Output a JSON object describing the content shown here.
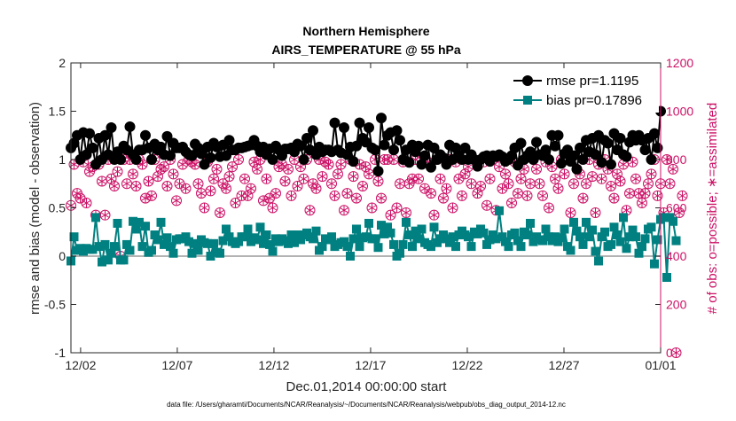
{
  "chart_data": {
    "type": "line",
    "title": "Northern Hemisphere",
    "subtitle": "AIRS_TEMPERATURE @ 55 hPa",
    "xlabel": "Dec.01,2014 00:00:00 start",
    "ylabel": "rmse and bias (model - observation)",
    "ylabel_right": "# of obs: o=possible; ∗=assimilated",
    "footnote": "data file: /Users/gharamti/Documents/NCAR/Reanalysis/~/Documents/NCAR/Reanalysis/webpub/obs_diag_output_2014-12.nc",
    "x_tick_labels": [
      "12/02",
      "12/07",
      "12/12",
      "12/17",
      "12/22",
      "12/27",
      "01/01"
    ],
    "x_tick_days": [
      1,
      6,
      11,
      16,
      21,
      26,
      31
    ],
    "xlim_days": [
      0.5,
      31
    ],
    "ylim": [
      -1,
      2
    ],
    "yticks": [
      "-1",
      "-0.5",
      "0",
      "0.5",
      "1",
      "1.5",
      "2"
    ],
    "ylim_right": [
      0,
      1200
    ],
    "yticks_right": [
      "0",
      "200",
      "400",
      "600",
      "800",
      "1000",
      "1200"
    ],
    "grid": false,
    "legend_position": "top-right",
    "colors": {
      "rmse": "#000000",
      "bias": "#008080",
      "obs": "#cc1166",
      "zero_line": "#b3b3b3"
    },
    "series": [
      {
        "name": "rmse pr=1.1195",
        "marker": "circle",
        "values": [
          1.12,
          1.17,
          1.25,
          1.0,
          1.28,
          1.05,
          1.27,
          1.12,
          0.95,
          1.22,
          1.0,
          1.25,
          1.05,
          1.33,
          1.0,
          1.08,
          1.0,
          1.14,
          1.1,
          1.34,
          1.05,
          1.0,
          1.1,
          1.1,
          1.25,
          1.12,
          1.0,
          1.16,
          1.1,
          1.13,
          1.05,
          1.24,
          1.04,
          1.17,
          1.12,
          1.12,
          1.13,
          1.08,
          1.05,
          1.04,
          1.16,
          1.12,
          1.06,
          0.95,
          1.13,
          1.02,
          1.17,
          1.13,
          1.03,
          1.15,
          1.04,
          1.2,
          1.1,
          1.1,
          1.12,
          1.12,
          1.13,
          1.14,
          1.15,
          1.2,
          1.14,
          1.08,
          1.13,
          1.05,
          1.11,
          1.0,
          1.14,
          1.1,
          1.04,
          1.11,
          1.11,
          1.12,
          1.08,
          1.16,
          1.14,
          1.0,
          1.22,
          1.1,
          1.3,
          1.05,
          1.13,
          1.08,
          1.1,
          1.1,
          1.08,
          1.38,
          1.1,
          1.07,
          1.33,
          1.05,
          1.13,
          0.98,
          1.14,
          1.38,
          1.22,
          1.18,
          1.33,
          1.12,
          1.1,
          0.88,
          1.43,
          1.15,
          1.25,
          1.28,
          1.1,
          1.3,
          1.2,
          1.0,
          1.1,
          0.97,
          1.15,
          1.08,
          1.14,
          0.95,
          1.04,
          1.15,
          0.92,
          1.12,
          1.0,
          1.05,
          1.02,
          0.95,
          1.15,
          1.0,
          1.12,
          1.04,
          1.0,
          1.12,
          1.0,
          1.05,
          1.0,
          0.93,
          1.0,
          1.03,
          1.04,
          0.98,
          1.04,
          1.03,
          1.05,
          1.03,
          0.98,
          1.0,
          1.04,
          1.12,
          0.94,
          1.17,
          1.0,
          1.04,
          1.08,
          1.0,
          1.18,
          1.05,
          1.04,
          1.1,
          1.0,
          1.25,
          1.14,
          1.25,
          0.96,
          1.06,
          1.1,
          0.98,
          1.04,
          0.9,
          1.12,
          1.0,
          1.2,
          1.08,
          1.22,
          1.05,
          1.25,
          0.97,
          1.2,
          1.17,
          0.95,
          1.27,
          1.1,
          1.22,
          1.05,
          1.03,
          1.18,
          1.25,
          1.2,
          1.25,
          1.2,
          1.1,
          1.22,
          1.0,
          1.27,
          1.12,
          1.5
        ]
      },
      {
        "name": "bias pr=0.17896",
        "marker": "square",
        "values": [
          -0.05,
          0.2,
          0.06,
          0.08,
          0.05,
          0.08,
          0.07,
          0.07,
          0.4,
          0.1,
          -0.06,
          0.12,
          -0.04,
          0.03,
          0.1,
          0.34,
          -0.04,
          -0.04,
          0.12,
          0.06,
          0.36,
          0.28,
          0.35,
          0.1,
          0.31,
          0.04,
          0.06,
          0.22,
          0.17,
          0.35,
          0.12,
          0.19,
          0.1,
          0.03,
          0.17,
          0.18,
          0.18,
          0.2,
          0.15,
          0.03,
          0.13,
          0.06,
          0.17,
          0.14,
          0.13,
          0.0,
          0.13,
          0.04,
          0.03,
          0.16,
          0.28,
          0.2,
          0.15,
          0.13,
          0.15,
          0.2,
          0.2,
          0.28,
          0.15,
          0.19,
          0.17,
          0.3,
          0.13,
          0.22,
          0.12,
          0.05,
          0.18,
          0.15,
          0.18,
          0.16,
          0.13,
          0.22,
          0.14,
          0.22,
          0.17,
          0.22,
          0.24,
          0.2,
          0.18,
          0.26,
          0.06,
          0.1,
          0.18,
          0.17,
          0.2,
          0.1,
          0.12,
          0.14,
          0.15,
          0.1,
          0.0,
          0.18,
          0.28,
          0.1,
          0.19,
          0.2,
          0.34,
          0.18,
          0.18,
          0.09,
          0.32,
          0.23,
          0.3,
          0.24,
          0.12,
          0.0,
          0.03,
          0.12,
          0.35,
          0.22,
          0.1,
          0.26,
          0.18,
          0.28,
          0.14,
          0.12,
          0.1,
          0.3,
          0.14,
          0.18,
          0.22,
          0.18,
          0.14,
          0.2,
          0.1,
          0.22,
          0.26,
          0.22,
          0.2,
          0.1,
          0.25,
          0.23,
          0.28,
          0.24,
          0.12,
          0.17,
          0.22,
          0.18,
          0.47,
          0.2,
          0.15,
          0.1,
          0.22,
          0.24,
          0.16,
          0.1,
          0.25,
          0.22,
          0.34,
          0.15,
          0.2,
          0.17,
          0.16,
          0.28,
          0.2,
          0.16,
          0.2,
          0.15,
          0.19,
          0.28,
          0.1,
          0.06,
          0.35,
          0.26,
          0.2,
          0.12,
          0.35,
          0.2,
          0.27,
          0.05,
          -0.05,
          0.2,
          0.25,
          0.1,
          0.12,
          0.3,
          0.22,
          0.15,
          0.4,
          0.08,
          0.2,
          0.27,
          0.2,
          0.03,
          0.1,
          0.18,
          0.28,
          0.3,
          -0.08,
          0.17,
          0.38,
          0.4,
          -0.22,
          0.4,
          0.36,
          0.16
        ]
      },
      {
        "name": "possible",
        "axis": "right",
        "marker": "circle-open",
        "values": [
          610,
          780,
          660,
          640,
          790,
          620,
          750,
          770,
          570,
          780,
          710,
          570,
          800,
          720,
          690,
          750,
          400,
          800,
          700,
          800,
          740,
          690,
          800,
          780,
          640,
          710,
          650,
          800,
          730,
          760,
          770,
          690,
          800,
          740,
          630,
          700,
          780,
          680,
          800,
          790,
          780,
          700,
          660,
          600,
          790,
          670,
          720,
          760,
          580,
          700,
          680,
          730,
          770,
          620,
          800,
          650,
          720,
          650,
          680,
          790,
          760,
          800,
          630,
          720,
          640,
          600,
          660,
          770,
          780,
          710,
          760,
          650,
          800,
          690,
          770,
          720,
          800,
          590,
          700,
          680,
          800,
          730,
          790,
          780,
          700,
          650,
          740,
          780,
          590,
          660,
          800,
          730,
          640,
          780,
          690,
          770,
          740,
          600,
          800,
          710,
          640,
          800,
          800,
          570,
          800,
          600,
          700,
          790,
          580,
          700,
          720,
          800,
          720,
          800,
          680,
          790,
          660,
          570,
          800,
          720,
          640,
          680,
          800,
          600,
          790,
          720,
          650,
          740,
          770,
          700,
          800,
          660,
          690,
          790,
          610,
          720,
          800,
          590,
          770,
          680,
          740,
          700,
          620,
          790,
          660,
          720,
          760,
          650,
          700,
          800,
          760,
          700,
          650,
          790,
          600,
          770,
          720,
          680,
          800,
          740,
          800,
          580,
          700,
          760,
          740,
          640,
          700,
          800,
          730,
          580,
          780,
          720,
          800,
          760,
          690,
          640,
          740,
          710,
          780,
          590,
          660,
          790,
          720,
          660,
          620,
          660,
          700,
          740,
          800,
          650,
          700,
          580,
          800,
          700,
          760,
          0,
          580,
          650
        ]
      },
      {
        "name": "assimilated",
        "axis": "right",
        "marker": "asterisk",
        "values": [
          610,
          780,
          660,
          640,
          790,
          620,
          750,
          770,
          570,
          780,
          710,
          570,
          800,
          720,
          690,
          750,
          400,
          800,
          700,
          800,
          740,
          690,
          800,
          780,
          640,
          710,
          650,
          800,
          730,
          760,
          770,
          690,
          800,
          740,
          630,
          700,
          780,
          680,
          800,
          790,
          780,
          700,
          660,
          600,
          790,
          670,
          720,
          760,
          580,
          700,
          680,
          730,
          770,
          620,
          800,
          650,
          720,
          650,
          680,
          790,
          760,
          800,
          630,
          720,
          640,
          600,
          660,
          770,
          780,
          710,
          760,
          650,
          800,
          690,
          770,
          720,
          800,
          590,
          700,
          680,
          800,
          730,
          790,
          780,
          700,
          650,
          740,
          780,
          590,
          660,
          800,
          730,
          640,
          780,
          690,
          770,
          740,
          600,
          800,
          710,
          640,
          800,
          800,
          570,
          800,
          600,
          700,
          790,
          580,
          700,
          720,
          800,
          720,
          800,
          680,
          790,
          660,
          570,
          800,
          720,
          640,
          680,
          800,
          600,
          790,
          720,
          650,
          740,
          770,
          700,
          800,
          660,
          690,
          790,
          610,
          720,
          800,
          590,
          770,
          680,
          740,
          700,
          620,
          790,
          660,
          720,
          760,
          650,
          700,
          800,
          760,
          700,
          650,
          790,
          600,
          770,
          720,
          680,
          800,
          740,
          800,
          580,
          700,
          760,
          740,
          640,
          700,
          800,
          730,
          580,
          780,
          720,
          800,
          760,
          690,
          640,
          740,
          710,
          780,
          590,
          660,
          790,
          720,
          660,
          620,
          660,
          700,
          740,
          800,
          650,
          700,
          580,
          800,
          700,
          760,
          0,
          580,
          650
        ]
      }
    ]
  }
}
